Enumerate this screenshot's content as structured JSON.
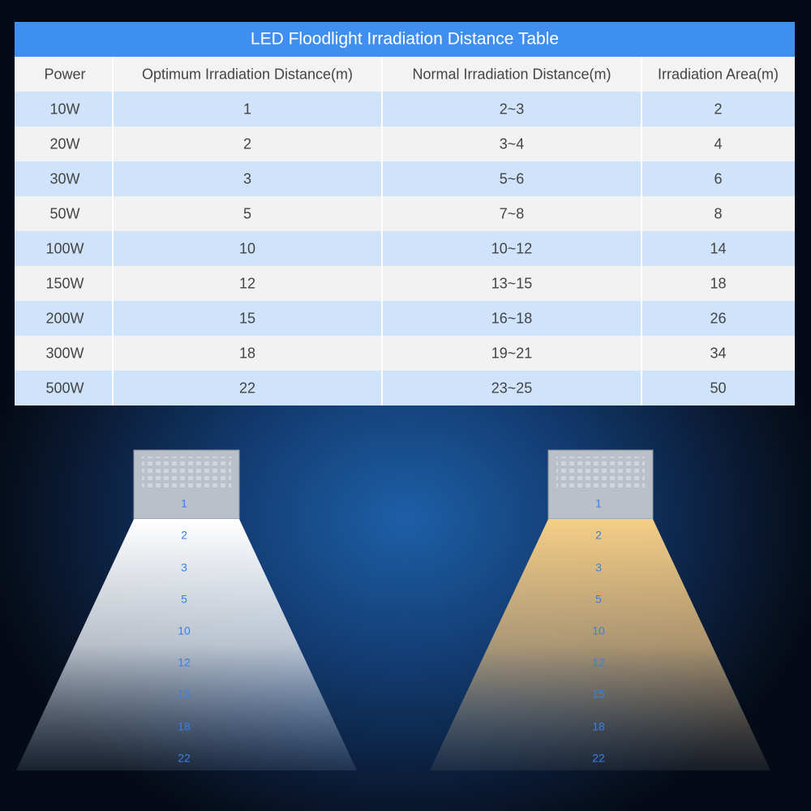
{
  "table": {
    "title": "LED Floodlight Irradiation Distance Table",
    "header": [
      "Power",
      "Optimum Irradiation Distance(m)",
      "Normal Irradiation Distance(m)",
      "Irradiation Area(m)"
    ],
    "rows": [
      [
        "10W",
        "1",
        "2~3",
        "2"
      ],
      [
        "20W",
        "2",
        "3~4",
        "4"
      ],
      [
        "30W",
        "3",
        "5~6",
        "6"
      ],
      [
        "50W",
        "5",
        "7~8",
        "8"
      ],
      [
        "100W",
        "10",
        "10~12",
        "14"
      ],
      [
        "150W",
        "12",
        "13~15",
        "18"
      ],
      [
        "200W",
        "15",
        "16~18",
        "26"
      ],
      [
        "300W",
        "18",
        "19~21",
        "34"
      ],
      [
        "500W",
        "22",
        "23~25",
        "50"
      ]
    ]
  },
  "beams": [
    {
      "labels": [
        "1",
        "2",
        "3",
        "5",
        "10",
        "12",
        "15",
        "18",
        "22"
      ]
    },
    {
      "labels": [
        "1",
        "2",
        "3",
        "5",
        "10",
        "12",
        "15",
        "18",
        "22"
      ]
    }
  ]
}
